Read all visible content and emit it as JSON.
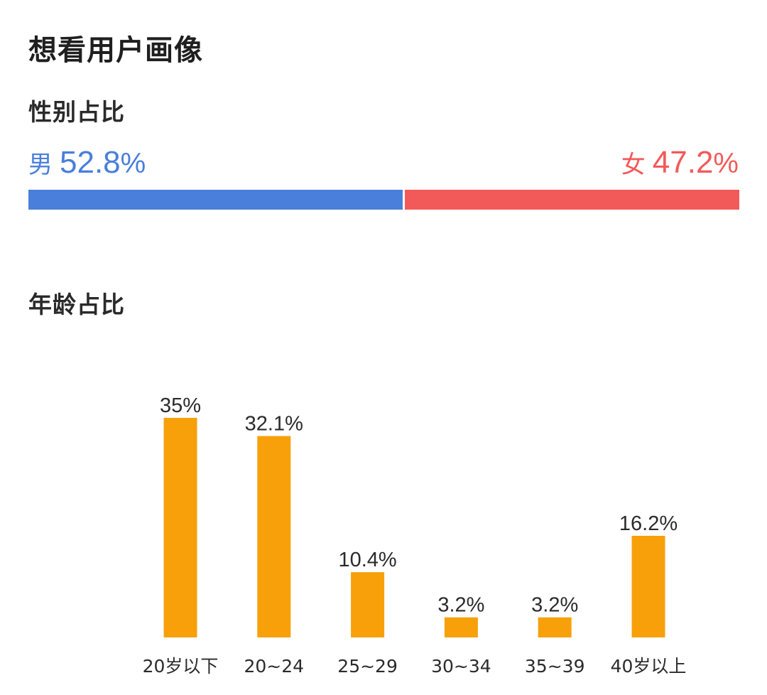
{
  "page": {
    "title": "想看用户画像"
  },
  "gender": {
    "heading": "性别占比",
    "male": {
      "label": "男",
      "percent": "52.8",
      "unit": "%",
      "value": 52.8,
      "color": "#4A7FDB"
    },
    "female": {
      "label": "女",
      "percent": "47.2",
      "unit": "%",
      "value": 47.2,
      "color": "#F25A5A"
    }
  },
  "age": {
    "heading": "年龄占比"
  },
  "chart_data": {
    "type": "bar",
    "categories": [
      "20岁以下",
      "20~24",
      "25~29",
      "30~34",
      "35~39",
      "40岁以上"
    ],
    "values": [
      35,
      32.1,
      10.4,
      3.2,
      3.2,
      16.2
    ],
    "data_labels": [
      "35%",
      "32.1%",
      "10.4%",
      "3.2%",
      "3.2%",
      "16.2%"
    ],
    "unit": "%",
    "bar_color": "#F7A00A",
    "ylim": [
      0,
      35
    ],
    "grid": false,
    "legend": "none"
  }
}
